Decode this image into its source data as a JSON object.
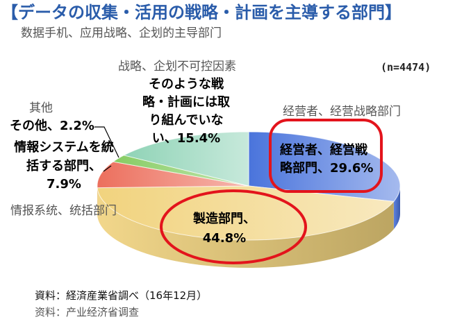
{
  "chart_data": {
    "type": "pie",
    "title": "【データの収集・活用の戦略・計画を主導する部門】",
    "subtitle": "数据手机、应用战略、企划的主导部门",
    "note": "(n=4474)",
    "slices": [
      {
        "label_lines": [
          "経営者、経営戦",
          "略部門、29.6%"
        ],
        "value": 29.6,
        "color": "#4a74dc"
      },
      {
        "label_lines": [
          "製造部門、",
          "44.8%"
        ],
        "value": 44.8,
        "color": "#f1d37e"
      },
      {
        "label_lines": [
          "情報システムを統",
          "括する部門、",
          "7.9%"
        ],
        "value": 7.9,
        "color": "#ec6f5d"
      },
      {
        "label_lines": [
          "その他、2.2%"
        ],
        "value": 2.2,
        "color": "#86cc62"
      },
      {
        "label_lines": [
          "そのような戦",
          "略・計画には取",
          "り組んでいな",
          "い、15.4%"
        ],
        "value": 15.4,
        "color": "#8fd3b6"
      }
    ]
  },
  "annotations_zh": {
    "not_working": "战略、企划不可控因素",
    "management": "经营者、经营战略部门",
    "other": "其他",
    "info_system": "情报系统、统括部门"
  },
  "source": {
    "japanese": "資料：経済産業省調べ（16年12月）",
    "chinese": "资料：产业经济省调查"
  },
  "colors": {
    "title": "#2a5caa",
    "highlight": "#e3141c",
    "annotation": "#555555"
  }
}
